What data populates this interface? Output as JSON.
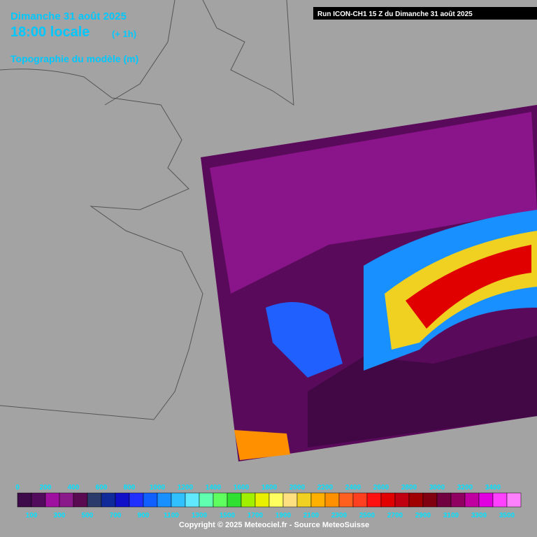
{
  "header": {
    "date": "Dimanche 31 août 2025",
    "time": "18:00 locale",
    "offset": "(+ 1h)",
    "product": "Topographie du modèle (m)",
    "run": "Run ICON-CH1 15 Z du Dimanche 31 août 2025"
  },
  "legend": {
    "top_labels": [
      0,
      200,
      400,
      600,
      800,
      1000,
      1200,
      1400,
      1600,
      1800,
      2000,
      2200,
      2400,
      2600,
      2800,
      3000,
      3200,
      3400
    ],
    "bottom_labels": [
      100,
      300,
      500,
      700,
      900,
      1100,
      1300,
      1500,
      1700,
      1900,
      2100,
      2300,
      2500,
      2700,
      2900,
      3100,
      3300,
      3500
    ],
    "colors": [
      "#3d0b49",
      "#520c5c",
      "#a010a0",
      "#8a1a8a",
      "#5a0a50",
      "#2a3a6a",
      "#102a9a",
      "#1010c8",
      "#2030ff",
      "#1060ff",
      "#1890ff",
      "#30c0ff",
      "#60e8ff",
      "#60ffb0",
      "#60ff60",
      "#30e030",
      "#a0f000",
      "#e8f000",
      "#ffff60",
      "#ffe080",
      "#f0d020",
      "#ffb000",
      "#ff9000",
      "#ff6020",
      "#ff4020",
      "#ff1010",
      "#e00000",
      "#c00010",
      "#a00000",
      "#800010",
      "#700040",
      "#900060",
      "#c000a0",
      "#e000e0",
      "#ff40ff",
      "#ff80ff"
    ]
  },
  "footer": {
    "copyright": "Copyright © 2025 Meteociel.fr - Source MeteoSuisse"
  }
}
